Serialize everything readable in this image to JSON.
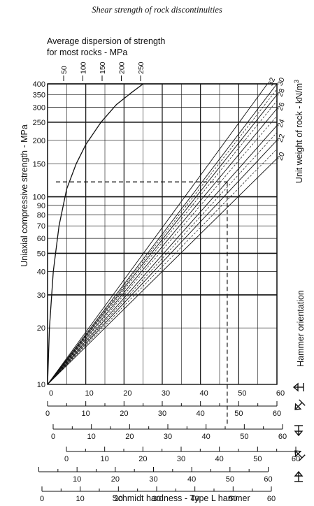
{
  "header": {
    "title": "Shear strength of rock discontinuities"
  },
  "chart_data": {
    "type": "line",
    "title": "",
    "top_label": [
      "Average dispersion of strength",
      "for most rocks - MPa"
    ],
    "xlabel": "Schmidt hardness - Type L hammer",
    "ylabel": "Uniaxial compressive strength - MPa",
    "right_label": "Unit weight of rock - kN/m",
    "right_label_superscript": "3",
    "orientation_label": "Hammer orientation",
    "x_range": [
      0,
      60
    ],
    "y_range": [
      10,
      400
    ],
    "y_scale": "log",
    "x_ticks": [
      0,
      10,
      20,
      30,
      40,
      50,
      60
    ],
    "y_ticks": [
      10,
      20,
      30,
      40,
      50,
      60,
      70,
      80,
      90,
      100,
      150,
      200,
      250,
      300,
      350,
      400
    ],
    "dispersion_curve": {
      "name": "Average dispersion of strength",
      "points": [
        [
          0,
          10
        ],
        [
          0.5,
          20
        ],
        [
          1.5,
          40
        ],
        [
          3,
          70
        ],
        [
          5,
          110
        ],
        [
          7.5,
          150
        ],
        [
          10,
          190
        ],
        [
          14,
          250
        ],
        [
          18,
          310
        ],
        [
          22,
          360
        ],
        [
          25,
          400
        ]
      ]
    },
    "dispersion_ticks": [
      50,
      100,
      150,
      200,
      250
    ],
    "unit_weight_lines": [
      {
        "label": "20",
        "end": [
          60,
          160
        ]
      },
      {
        "label": "",
        "end": [
          60,
          180
        ]
      },
      {
        "label": "22",
        "end": [
          60,
          200
        ]
      },
      {
        "label": "",
        "end": [
          60,
          220
        ]
      },
      {
        "label": "24",
        "end": [
          60,
          240
        ]
      },
      {
        "label": "",
        "end": [
          60,
          270
        ]
      },
      {
        "label": "26",
        "end": [
          60,
          295
        ]
      },
      {
        "label": "",
        "end": [
          60,
          325
        ]
      },
      {
        "label": "28",
        "end": [
          60,
          350
        ]
      },
      {
        "label": "",
        "end": [
          60,
          375
        ]
      },
      {
        "label": "30",
        "end": [
          60,
          400
        ]
      },
      {
        "label": "32",
        "end": [
          57.5,
          400
        ]
      }
    ],
    "example": {
      "x": 47,
      "y": 120
    },
    "orientation_scales": [
      {
        "orientation": "horizontal",
        "offset": 0,
        "labels": [
          0,
          10,
          20,
          30,
          40,
          50,
          60
        ]
      },
      {
        "orientation": "down-45",
        "offset": 1.6,
        "labels": [
          0,
          10,
          20,
          30,
          40,
          50,
          60
        ]
      },
      {
        "orientation": "down-90",
        "offset": 5.4,
        "labels": [
          0,
          10,
          20,
          30,
          40,
          50,
          60
        ]
      },
      {
        "orientation": "up-45",
        "offset": -2.5,
        "labels": [
          10,
          20,
          30,
          40,
          50,
          60
        ]
      },
      {
        "orientation": "up-90",
        "offset": -1.6,
        "labels": [
          0,
          10,
          20,
          30,
          40,
          50,
          60
        ]
      }
    ]
  }
}
